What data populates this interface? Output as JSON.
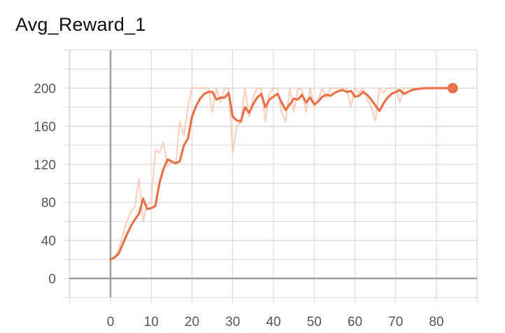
{
  "chart_data": {
    "type": "line",
    "title": "Avg_Reward_1",
    "xlabel": "",
    "ylabel": "",
    "xlim": [
      -10,
      90
    ],
    "ylim": [
      -20,
      240
    ],
    "x_ticks": [
      0,
      10,
      20,
      30,
      40,
      50,
      60,
      70,
      80
    ],
    "y_ticks": [
      0,
      40,
      80,
      120,
      160,
      200
    ],
    "grid": true,
    "legend": "none",
    "colors": {
      "smoothed": "#e8734a",
      "raw": "#f7c9b6",
      "grid": "#d6d6d6",
      "axis": "#9e9e9e",
      "tick_text": "#555555"
    },
    "series": [
      {
        "role": "raw",
        "x": [
          0,
          1,
          2,
          3,
          4,
          5,
          6,
          7,
          8,
          9,
          10,
          11,
          12,
          13,
          14,
          15,
          16,
          17,
          18,
          19,
          20,
          21,
          22,
          23,
          24,
          25,
          26,
          27,
          28,
          29,
          30,
          31,
          32,
          33,
          34,
          35,
          36,
          37,
          38,
          39,
          40,
          41,
          42,
          43,
          44,
          45,
          46,
          47,
          48,
          49,
          50,
          51,
          52,
          53,
          54,
          55,
          56,
          57,
          58,
          59,
          60,
          61,
          62,
          63,
          64,
          65,
          66,
          67,
          68,
          69,
          70,
          71,
          72,
          73,
          74,
          75,
          76,
          77,
          78,
          79,
          80,
          81,
          82,
          83,
          84
        ],
        "y": [
          20,
          22,
          30,
          45,
          60,
          70,
          75,
          105,
          60,
          78,
          80,
          135,
          132,
          143,
          118,
          122,
          120,
          165,
          150,
          180,
          200,
          200,
          200,
          200,
          200,
          175,
          200,
          185,
          200,
          200,
          132,
          160,
          165,
          200,
          170,
          190,
          200,
          200,
          165,
          195,
          200,
          200,
          175,
          165,
          200,
          175,
          200,
          198,
          175,
          200,
          180,
          188,
          200,
          190,
          200,
          200,
          200,
          200,
          200,
          180,
          200,
          195,
          200,
          188,
          180,
          165,
          200,
          195,
          200,
          200,
          200,
          185,
          200,
          200,
          200,
          200,
          200,
          200,
          200,
          200,
          200,
          200,
          200,
          200,
          200
        ]
      },
      {
        "role": "smoothed",
        "x": [
          0,
          1,
          2,
          3,
          4,
          5,
          6,
          7,
          8,
          9,
          10,
          11,
          12,
          13,
          14,
          15,
          16,
          17,
          18,
          19,
          20,
          21,
          22,
          23,
          24,
          25,
          26,
          27,
          28,
          29,
          30,
          31,
          32,
          33,
          34,
          35,
          36,
          37,
          38,
          39,
          40,
          41,
          42,
          43,
          44,
          45,
          46,
          47,
          48,
          49,
          50,
          51,
          52,
          53,
          54,
          55,
          56,
          57,
          58,
          59,
          60,
          61,
          62,
          63,
          64,
          65,
          66,
          67,
          68,
          69,
          70,
          71,
          72,
          73,
          74,
          75,
          76,
          77,
          78,
          79,
          80,
          81,
          82,
          83,
          84
        ],
        "y": [
          20,
          22,
          26,
          36,
          46,
          55,
          62,
          68,
          84,
          73,
          74,
          76,
          100,
          115,
          125,
          123,
          121,
          123,
          140,
          147,
          170,
          181,
          189,
          194,
          196,
          196,
          188,
          190,
          190,
          195,
          170,
          166,
          165,
          180,
          174,
          183,
          190,
          194,
          180,
          188,
          191,
          194,
          185,
          177,
          183,
          189,
          188,
          193,
          185,
          190,
          183,
          186,
          191,
          193,
          192,
          195,
          197,
          198,
          196,
          197,
          191,
          192,
          196,
          193,
          188,
          182,
          176,
          184,
          190,
          194,
          196,
          198,
          194,
          196,
          198,
          199,
          199.5,
          200,
          200,
          200,
          200,
          200,
          200,
          200,
          200
        ]
      }
    ]
  }
}
